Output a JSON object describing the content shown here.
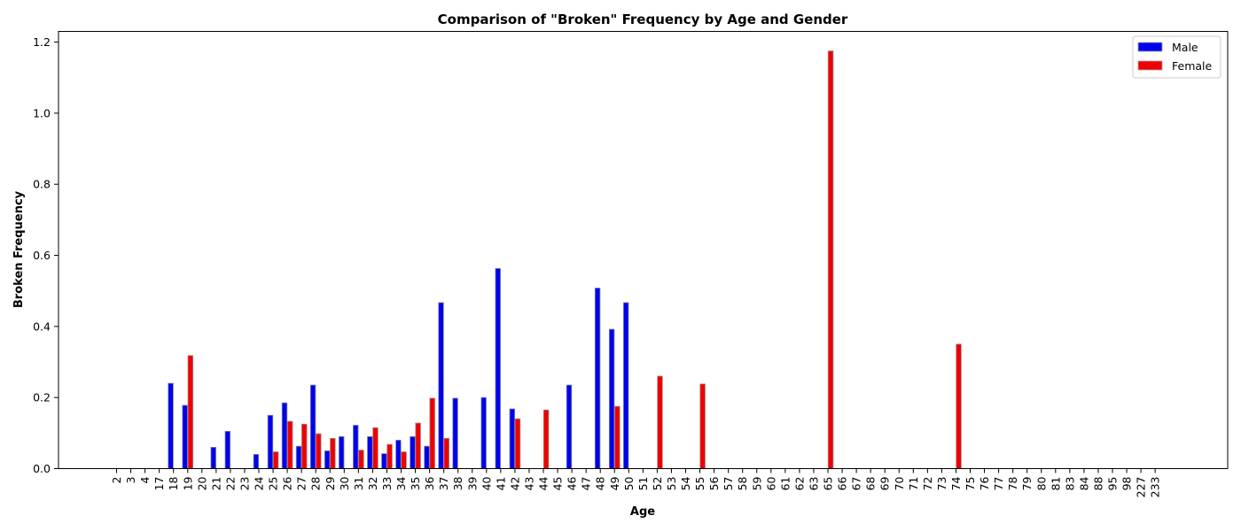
{
  "chart_data": {
    "type": "bar",
    "title": "Comparison of \"Broken\" Frequency by Age and Gender",
    "xlabel": "Age",
    "ylabel": "Broken Frequency",
    "ylim": [
      0,
      1.23
    ],
    "yticks": [
      "0.0",
      "0.2",
      "0.4",
      "0.6",
      "0.8",
      "1.0",
      "1.2"
    ],
    "grid": false,
    "legend_position": "top-right",
    "categories": [
      "2",
      "3",
      "4",
      "17",
      "18",
      "19",
      "20",
      "21",
      "22",
      "23",
      "24",
      "25",
      "26",
      "27",
      "28",
      "29",
      "30",
      "31",
      "32",
      "33",
      "34",
      "35",
      "36",
      "37",
      "38",
      "39",
      "40",
      "41",
      "42",
      "43",
      "44",
      "45",
      "46",
      "47",
      "48",
      "49",
      "50",
      "51",
      "52",
      "53",
      "54",
      "55",
      "56",
      "57",
      "58",
      "59",
      "60",
      "61",
      "62",
      "63",
      "65",
      "66",
      "67",
      "68",
      "69",
      "70",
      "71",
      "72",
      "73",
      "74",
      "75",
      "76",
      "77",
      "78",
      "79",
      "80",
      "81",
      "83",
      "84",
      "88",
      "95",
      "98",
      "227",
      "233"
    ],
    "series": [
      {
        "name": "Male",
        "color": "#0000ee",
        "values": [
          0,
          0,
          0,
          0,
          0.24,
          0.178,
          0,
          0.06,
          0.105,
          0,
          0.04,
          0.15,
          0.185,
          0.063,
          0.235,
          0.05,
          0.09,
          0.122,
          0.09,
          0.042,
          0.08,
          0.09,
          0.063,
          0.467,
          0.198,
          0,
          0.2,
          0.563,
          0.168,
          0,
          0,
          0,
          0.235,
          0,
          0.508,
          0.392,
          0.467,
          0,
          0,
          0,
          0,
          0,
          0,
          0,
          0,
          0,
          0,
          0,
          0,
          0,
          0,
          0,
          0,
          0,
          0,
          0,
          0,
          0,
          0,
          0,
          0,
          0,
          0,
          0,
          0,
          0,
          0,
          0,
          0,
          0,
          0,
          0,
          0,
          0
        ]
      },
      {
        "name": "Female",
        "color": "#ee0000",
        "values": [
          0,
          0,
          0,
          0,
          0,
          0.318,
          0,
          0,
          0,
          0,
          0,
          0.047,
          0.133,
          0.125,
          0.098,
          0.085,
          0,
          0.052,
          0.115,
          0.068,
          0.047,
          0.128,
          0.198,
          0.085,
          0,
          0,
          0,
          0,
          0.14,
          0,
          0.165,
          0,
          0,
          0,
          0,
          0.175,
          0,
          0,
          0.26,
          0,
          0,
          0.238,
          0,
          0,
          0,
          0,
          0,
          0,
          0,
          0,
          1.175,
          0,
          0,
          0,
          0,
          0,
          0,
          0,
          0,
          0.35,
          0,
          0,
          0,
          0,
          0,
          0,
          0,
          0,
          0,
          0,
          0,
          0,
          0,
          0
        ]
      }
    ]
  }
}
